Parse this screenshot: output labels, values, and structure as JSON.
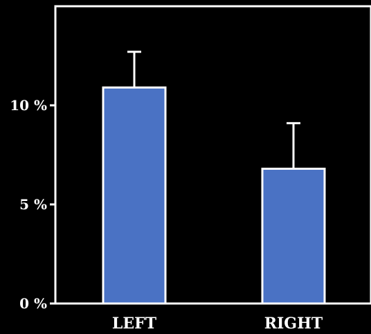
{
  "chart_data": {
    "type": "bar",
    "title": "",
    "xlabel": "",
    "ylabel": "",
    "categories": [
      "LEFT",
      "RIGHT"
    ],
    "values": [
      10.9,
      6.8
    ],
    "error_upper": [
      12.7,
      9.1
    ],
    "ylim": [
      0,
      15
    ],
    "yticks": [
      0,
      5,
      10
    ],
    "ytick_labels": [
      "0 %",
      "5 %",
      "10 %"
    ],
    "grid": false,
    "legend": "none",
    "colors": {
      "background": "#000000",
      "bar_fill": "#4a72c4",
      "bar_outline": "#ffffff",
      "axis": "#ffffff",
      "text": "#ffffff"
    }
  }
}
